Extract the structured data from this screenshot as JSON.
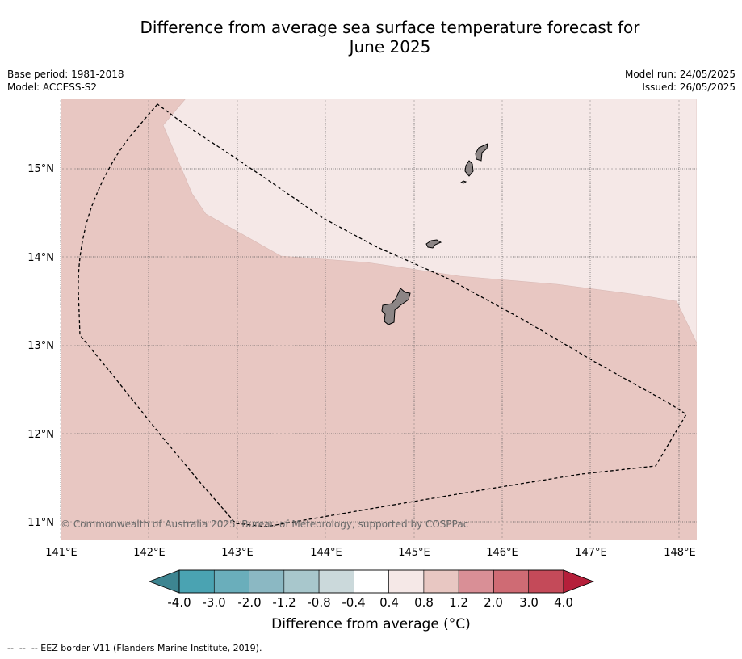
{
  "title_line1": "Difference from average sea surface temperature forecast for",
  "title_line2": "June 2025",
  "meta": {
    "base_period": "Base period: 1981-2018",
    "model": "Model: ACCESS-S2",
    "model_run": "Model run: 24/05/2025",
    "issued": "Issued: 26/05/2025"
  },
  "map": {
    "lon_labels": [
      "141°E",
      "142°E",
      "143°E",
      "144°E",
      "145°E",
      "146°E",
      "147°E",
      "148°E"
    ],
    "lat_labels": [
      "15°N",
      "14°N",
      "13°N",
      "12°N",
      "11°N"
    ],
    "copyright": "© Commonwealth of Australia 2025, Bureau of Meteorology, supported by COSPPac",
    "anomaly_colors": {
      "0.4_to_0.8": "#f5e8e7",
      "0.8_to_1.2": "#e8c7c2"
    },
    "land_color": "#8c8585"
  },
  "colorbar": {
    "title": "Difference from average (°C)",
    "tick_labels": [
      "-4.0",
      "-3.0",
      "-2.0",
      "-1.2",
      "-0.8",
      "-0.4",
      "0.4",
      "0.8",
      "1.2",
      "2.0",
      "3.0",
      "4.0"
    ],
    "colors": [
      "#4aa3b2",
      "#6aaebb",
      "#8bb8c3",
      "#a8c7cc",
      "#cbd9db",
      "#ffffff",
      "#f5e8e7",
      "#e8c7c2",
      "#d98f96",
      "#cf6b74",
      "#c44a59"
    ],
    "under_color": "#3d8591",
    "over_color": "#b51f3a"
  },
  "footnote": "--  --  -- EEZ border V11 (Flanders Marine Institute, 2019)."
}
